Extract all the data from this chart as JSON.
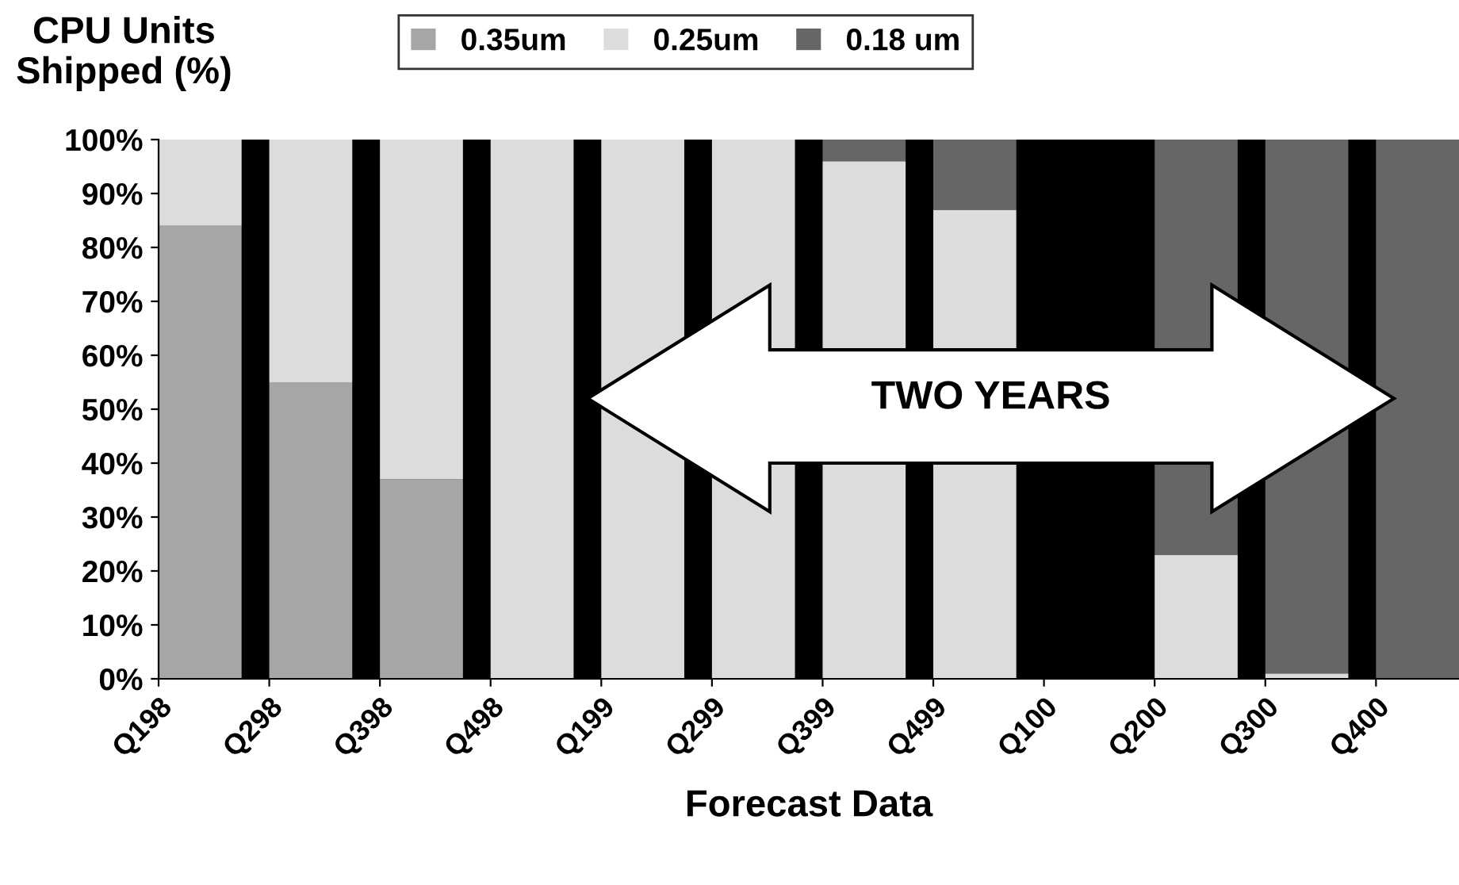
{
  "chart_data": {
    "type": "bar",
    "stacked": true,
    "ylabel": "CPU Units\nShipped (%)",
    "xlabel": "Forecast Data",
    "categories": [
      "Q198",
      "Q298",
      "Q398",
      "Q498",
      "Q199",
      "Q299",
      "Q399",
      "Q499",
      "Q100",
      "Q200",
      "Q300",
      "Q400"
    ],
    "series": [
      {
        "name": "0.35um",
        "color": "#a6a6a6",
        "values": [
          84,
          55,
          37,
          0,
          0,
          0,
          0,
          0,
          0,
          0,
          0,
          0
        ]
      },
      {
        "name": "0.25um",
        "color": "#dcdcdc",
        "values": [
          16,
          45,
          63,
          100,
          100,
          100,
          96,
          87,
          null,
          23,
          1,
          0
        ]
      },
      {
        "name": "0.18 um",
        "color": "#666666",
        "values": [
          0,
          0,
          0,
          0,
          0,
          0,
          4,
          13,
          null,
          77,
          99,
          100
        ]
      }
    ],
    "ylim": [
      0,
      100
    ],
    "yticks": [
      {
        "value": 0,
        "label": "0%"
      },
      {
        "value": 10,
        "label": "10%"
      },
      {
        "value": 20,
        "label": "20%"
      },
      {
        "value": 30,
        "label": "30%"
      },
      {
        "value": 40,
        "label": "40%"
      },
      {
        "value": 50,
        "label": "50%"
      },
      {
        "value": 60,
        "label": "60%"
      },
      {
        "value": 70,
        "label": "70%"
      },
      {
        "value": 80,
        "label": "80%"
      },
      {
        "value": 90,
        "label": "90%"
      },
      {
        "value": 100,
        "label": "100%"
      }
    ],
    "legend": "top",
    "grid": false,
    "annotations": [
      "TWO YEARS"
    ]
  }
}
